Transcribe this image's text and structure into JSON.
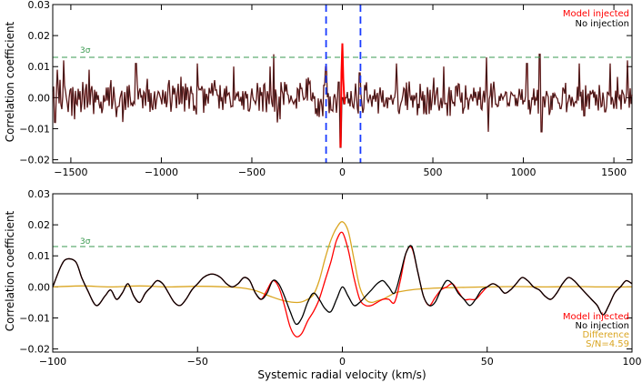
{
  "colors": {
    "model": "#ff0000",
    "noinj": "#000000",
    "diff": "#daa520",
    "sigma": "#3a9a50",
    "vline": "#1a3cff",
    "axis": "#000000"
  },
  "chart_data": [
    {
      "type": "line",
      "ylabel": "Correlation coefficient",
      "xlim": [
        -1600,
        1600
      ],
      "ylim": [
        -0.021,
        0.03
      ],
      "xticks": [
        -1500,
        -1000,
        -500,
        0,
        500,
        1000,
        1500
      ],
      "xtick_labels": [
        "−1500",
        "−1000",
        "−500",
        "0",
        "500",
        "1000",
        "1500"
      ],
      "yticks": [
        -0.02,
        -0.01,
        0.0,
        0.01,
        0.02,
        0.03
      ],
      "ytick_labels": [
        "−0.02",
        "−0.01",
        "0.00",
        "0.01",
        "0.02",
        "0.03"
      ],
      "sigma_level": 0.013,
      "sigma_label": "3σ",
      "vlines": [
        -90,
        100
      ],
      "legend": [
        "Model injected",
        "No injection"
      ],
      "legend_position": "top-right",
      "noise_amp": 0.0052,
      "series": [
        {
          "name": "No injection",
          "color": "noinj",
          "points": [
            [
              -1600,
              0.002
            ],
            [
              -1587,
              -0.008
            ],
            [
              -1575,
              0.009
            ],
            [
              -1540,
              0.012
            ],
            [
              -1398,
              0.009
            ],
            [
              -1140,
              0.011
            ],
            [
              -800,
              0.011
            ],
            [
              -600,
              0.01
            ],
            [
              -400,
              0.01
            ],
            [
              -378,
              0.014
            ],
            [
              -360,
              -0.008
            ],
            [
              -100,
              0.004
            ],
            [
              -90,
              0.01
            ],
            [
              -60,
              -0.004
            ],
            [
              -20,
              0.005
            ],
            [
              -10,
              -0.016
            ],
            [
              0,
              0.0
            ],
            [
              10,
              -0.002
            ],
            [
              20,
              0.0
            ],
            [
              95,
              0.008
            ],
            [
              300,
              0.011
            ],
            [
              560,
              0.01
            ],
            [
              795,
              0.013
            ],
            [
              805,
              -0.011
            ],
            [
              1020,
              0.011
            ],
            [
              1090,
              0.014
            ],
            [
              1100,
              -0.011
            ],
            [
              1310,
              0.011
            ],
            [
              1480,
              0.011
            ],
            [
              1575,
              0.012
            ],
            [
              1590,
              0.003
            ],
            [
              1600,
              0.001
            ]
          ]
        },
        {
          "name": "Model injected",
          "color": "model",
          "points": [
            [
              -10,
              -0.016
            ],
            [
              -5,
              0.008
            ],
            [
              0,
              0.0175
            ],
            [
              5,
              0.006
            ],
            [
              12,
              -0.002
            ]
          ]
        }
      ]
    },
    {
      "type": "line",
      "xlabel": "Systemic radial velocity (km/s)",
      "ylabel": "Correlation coefficient",
      "xlim": [
        -100,
        100
      ],
      "ylim": [
        -0.021,
        0.03
      ],
      "xticks": [
        -100,
        -50,
        0,
        50,
        100
      ],
      "xtick_labels": [
        "−100",
        "−50",
        "0",
        "50",
        "100"
      ],
      "yticks": [
        -0.02,
        -0.01,
        0.0,
        0.01,
        0.02,
        0.03
      ],
      "ytick_labels": [
        "−0.02",
        "−0.01",
        "0.00",
        "0.01",
        "0.02",
        "0.03"
      ],
      "sigma_level": 0.013,
      "sigma_label": "3σ",
      "legend": [
        "Model injected",
        "No injection",
        "Difference",
        "S/N=4.59"
      ],
      "legend_position": "bottom-right",
      "series": [
        {
          "name": "No injection",
          "color": "noinj",
          "x": [
            -100,
            -97,
            -95,
            -92,
            -90,
            -88,
            -85,
            -82,
            -80,
            -78,
            -76,
            -74,
            -72,
            -70,
            -68,
            -66,
            -64,
            -62,
            -60,
            -58,
            -56,
            -54,
            -52,
            -50,
            -48,
            -46,
            -44,
            -42,
            -40,
            -38,
            -36,
            -34,
            -32,
            -30,
            -28,
            -26,
            -24,
            -22,
            -20,
            -18,
            -16,
            -14,
            -12,
            -10,
            -8,
            -6,
            -4,
            -2,
            0,
            2,
            4,
            6,
            8,
            10,
            12,
            14,
            16,
            18,
            20,
            22,
            24,
            26,
            28,
            30,
            32,
            34,
            36,
            38,
            40,
            42,
            44,
            46,
            48,
            50,
            52,
            54,
            56,
            58,
            60,
            62,
            64,
            66,
            68,
            70,
            72,
            74,
            76,
            78,
            80,
            82,
            84,
            86,
            88,
            90,
            92,
            94,
            96,
            98,
            100
          ],
          "y": [
            0.0,
            0.007,
            0.009,
            0.008,
            0.003,
            -0.001,
            -0.006,
            -0.003,
            -0.001,
            -0.004,
            -0.002,
            0.001,
            -0.003,
            -0.005,
            -0.002,
            0.0,
            0.002,
            0.001,
            -0.002,
            -0.005,
            -0.006,
            -0.004,
            -0.001,
            0.001,
            0.003,
            0.004,
            0.004,
            0.003,
            0.001,
            0.0,
            0.001,
            0.003,
            0.002,
            -0.002,
            -0.004,
            -0.002,
            0.002,
            0.001,
            -0.003,
            -0.008,
            -0.012,
            -0.01,
            -0.005,
            -0.002,
            -0.004,
            -0.007,
            -0.008,
            -0.004,
            0.0,
            -0.003,
            -0.006,
            -0.005,
            -0.003,
            -0.001,
            0.001,
            0.002,
            0.0,
            -0.002,
            0.004,
            0.011,
            0.013,
            0.005,
            -0.003,
            -0.006,
            -0.005,
            -0.001,
            0.002,
            0.001,
            -0.002,
            -0.004,
            -0.006,
            -0.004,
            -0.001,
            0.0,
            0.001,
            0.0,
            -0.002,
            -0.001,
            0.001,
            0.003,
            0.002,
            0.0,
            -0.001,
            -0.003,
            -0.004,
            -0.002,
            0.001,
            0.003,
            0.002,
            0.0,
            -0.002,
            -0.004,
            -0.006,
            -0.009,
            -0.006,
            -0.002,
            0.0,
            0.002,
            0.001
          ]
        },
        {
          "name": "Model injected",
          "color": "model",
          "x": [
            -28,
            -24,
            -22,
            -20,
            -18,
            -16,
            -14,
            -12,
            -10,
            -8,
            -6,
            -4,
            -2,
            0,
            2,
            4,
            6,
            8,
            10,
            12,
            14,
            16,
            18,
            20,
            22,
            24,
            26,
            28,
            30,
            34,
            38,
            42,
            46,
            50
          ],
          "y": [
            -0.004,
            0.002,
            0.0,
            -0.006,
            -0.013,
            -0.016,
            -0.015,
            -0.011,
            -0.008,
            -0.004,
            0.002,
            0.008,
            0.015,
            0.0175,
            0.012,
            0.003,
            -0.004,
            -0.006,
            -0.006,
            -0.005,
            -0.004,
            -0.004,
            -0.005,
            0.002,
            0.011,
            0.0125,
            0.005,
            -0.003,
            -0.006,
            -0.001,
            0.001,
            -0.004,
            -0.004,
            0.0
          ]
        },
        {
          "name": "Difference",
          "color": "diff",
          "x": [
            -100,
            -90,
            -80,
            -70,
            -60,
            -50,
            -40,
            -35,
            -30,
            -25,
            -20,
            -15,
            -12,
            -10,
            -8,
            -6,
            -4,
            -2,
            0,
            2,
            4,
            6,
            8,
            10,
            12,
            14,
            16,
            18,
            20,
            25,
            30,
            35,
            40,
            50,
            60,
            70,
            80,
            90,
            100
          ],
          "y": [
            0.0,
            0.0003,
            0.0,
            0.0003,
            0.0,
            0.0002,
            0.0,
            -0.0003,
            -0.0012,
            -0.003,
            -0.0045,
            -0.005,
            -0.004,
            -0.0025,
            0.002,
            0.009,
            0.015,
            0.019,
            0.021,
            0.018,
            0.009,
            0.0,
            -0.004,
            -0.005,
            -0.0045,
            -0.004,
            -0.003,
            -0.002,
            -0.0015,
            -0.0008,
            -0.0005,
            -0.0003,
            -0.0002,
            0.0,
            0.0001,
            0.0,
            0.0001,
            0.0,
            0.0
          ]
        }
      ]
    }
  ]
}
